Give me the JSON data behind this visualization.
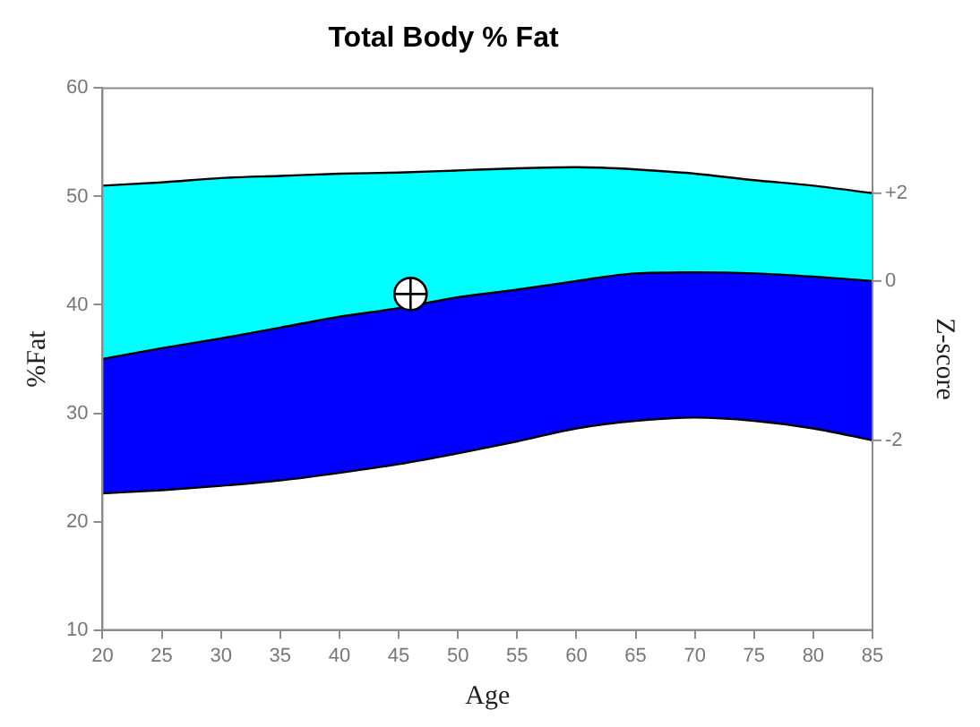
{
  "chart_data": {
    "type": "area",
    "title": "Total Body % Fat",
    "xlabel": "Age",
    "ylabel": "%Fat",
    "y2label": "Z-score",
    "x": [
      20,
      25,
      30,
      35,
      40,
      45,
      50,
      55,
      60,
      65,
      70,
      75,
      80,
      85
    ],
    "xlim": [
      20,
      85
    ],
    "xticks": [
      20,
      25,
      30,
      35,
      40,
      45,
      50,
      55,
      60,
      65,
      70,
      75,
      80,
      85
    ],
    "ylim": [
      10,
      60
    ],
    "yticks": [
      10,
      20,
      30,
      40,
      50,
      60
    ],
    "grid": false,
    "legend": false,
    "series": [
      {
        "name": "+2",
        "color": "#00ffff",
        "values": [
          51.0,
          51.3,
          51.7,
          51.9,
          52.1,
          52.2,
          52.4,
          52.6,
          52.7,
          52.5,
          52.1,
          51.5,
          51.0,
          50.3
        ]
      },
      {
        "name": "0",
        "color": "#0000ff",
        "values": [
          35.0,
          36.0,
          36.9,
          37.9,
          38.9,
          39.7,
          40.7,
          41.4,
          42.2,
          42.9,
          43.0,
          42.9,
          42.6,
          42.2
        ]
      },
      {
        "name": "-2",
        "type": "line",
        "color": "#000000",
        "values": [
          22.6,
          22.9,
          23.3,
          23.8,
          24.5,
          25.3,
          26.3,
          27.4,
          28.6,
          29.3,
          29.6,
          29.3,
          28.6,
          27.5
        ]
      },
      {
        "type": "scatter",
        "color": "#000000",
        "marker": "circle",
        "x": [
          46
        ],
        "values": [
          41
        ]
      }
    ]
  }
}
